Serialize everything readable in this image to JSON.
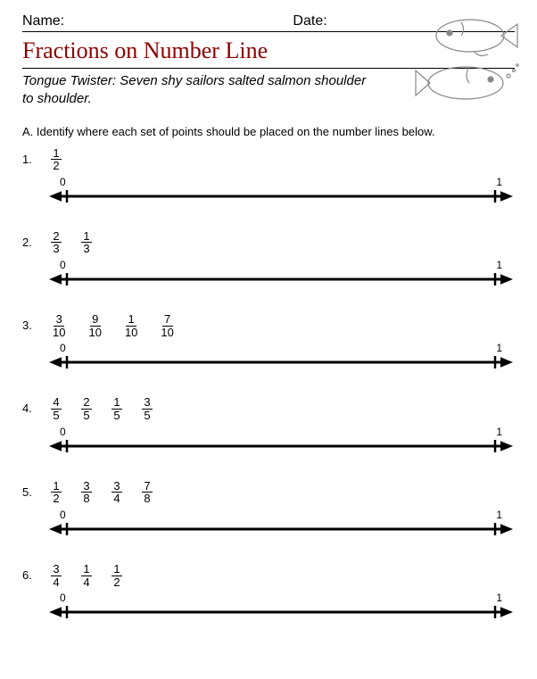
{
  "header": {
    "name_label": "Name:",
    "date_label": "Date:"
  },
  "title": "Fractions on Number Line",
  "twister": "Tongue Twister: Seven shy sailors salted salmon shoulder to shoulder.",
  "section_label": "A.  Identify where each set of points should be placed on the number lines below.",
  "colors": {
    "title": "#8b0000",
    "line": "#000000",
    "text": "#000000",
    "background": "#ffffff"
  },
  "numberline": {
    "start_label": "0",
    "end_label": "1",
    "line_width": 3,
    "tick_height": 14,
    "arrow_size": 8
  },
  "problems": [
    {
      "n": "1.",
      "fractions": [
        {
          "num": "1",
          "den": "2"
        }
      ]
    },
    {
      "n": "2.",
      "fractions": [
        {
          "num": "2",
          "den": "3"
        },
        {
          "num": "1",
          "den": "3"
        }
      ]
    },
    {
      "n": "3.",
      "fractions": [
        {
          "num": "3",
          "den": "10"
        },
        {
          "num": "9",
          "den": "10"
        },
        {
          "num": "1",
          "den": "10"
        },
        {
          "num": "7",
          "den": "10"
        }
      ]
    },
    {
      "n": "4.",
      "fractions": [
        {
          "num": "4",
          "den": "5"
        },
        {
          "num": "2",
          "den": "5"
        },
        {
          "num": "1",
          "den": "5"
        },
        {
          "num": "3",
          "den": "5"
        }
      ]
    },
    {
      "n": "5.",
      "fractions": [
        {
          "num": "1",
          "den": "2"
        },
        {
          "num": "3",
          "den": "8"
        },
        {
          "num": "3",
          "den": "4"
        },
        {
          "num": "7",
          "den": "8"
        }
      ]
    },
    {
      "n": "6.",
      "fractions": [
        {
          "num": "3",
          "den": "4"
        },
        {
          "num": "1",
          "den": "4"
        },
        {
          "num": "1",
          "den": "2"
        }
      ]
    }
  ]
}
